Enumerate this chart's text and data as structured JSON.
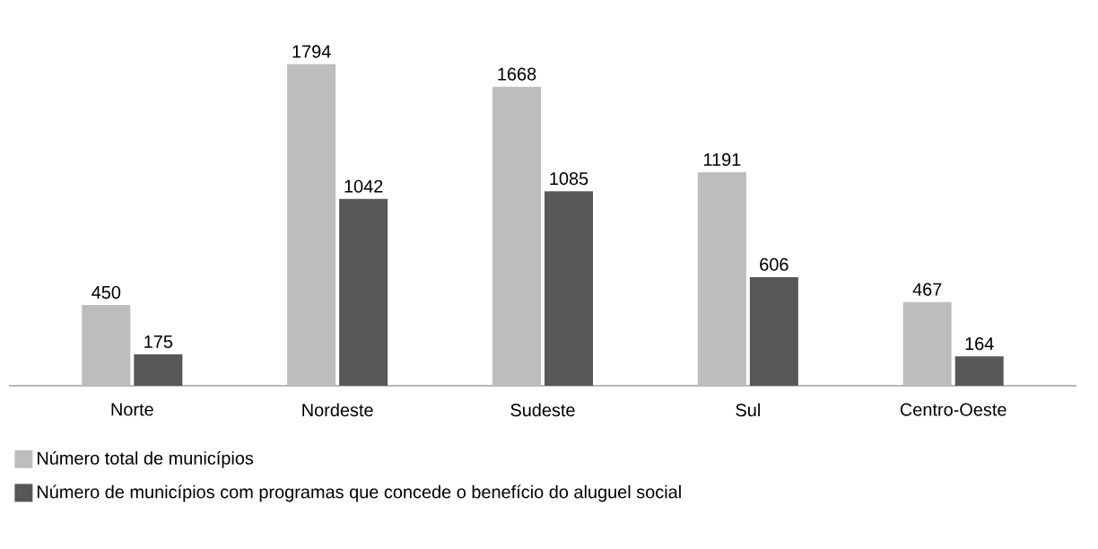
{
  "chart_data": {
    "type": "bar",
    "categories": [
      "Norte",
      "Nordeste",
      "Sudeste",
      "Sul",
      "Centro-Oeste"
    ],
    "series": [
      {
        "name": "Número total de municípios",
        "color": "#bdbdbd",
        "values": [
          450,
          1794,
          1668,
          1191,
          467
        ]
      },
      {
        "name": "Número de municípios com programas que concede o benefício do aluguel social",
        "color": "#575757",
        "values": [
          175,
          1042,
          1085,
          606,
          164
        ]
      }
    ],
    "data_labels": true,
    "legend": "bottom left"
  }
}
